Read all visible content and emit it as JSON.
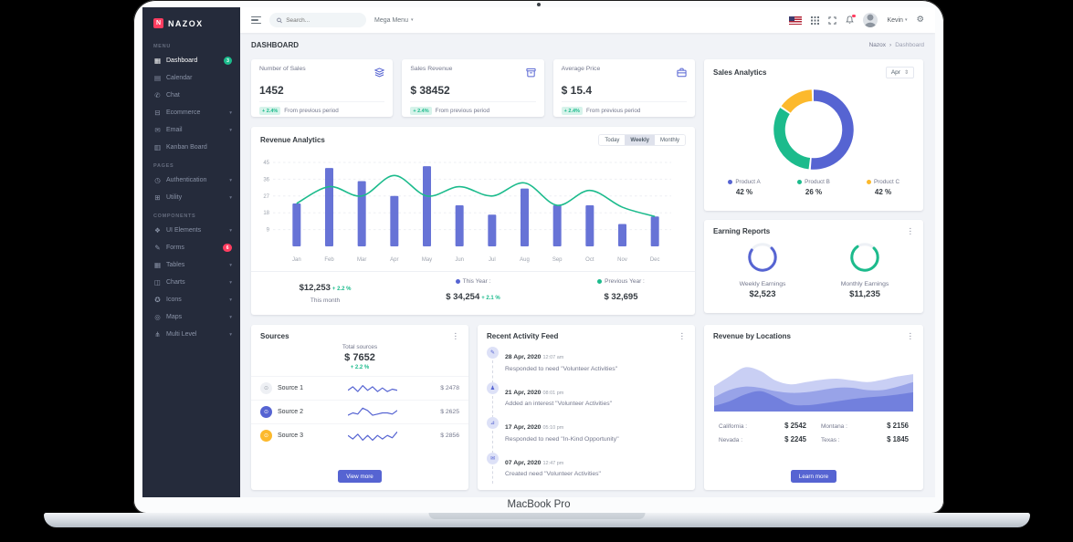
{
  "device": {
    "label": "MacBook Pro"
  },
  "colors": {
    "primary": "#5664d2",
    "success": "#1cbb8c",
    "warning": "#fcb92c",
    "danger": "#ff3d60",
    "sidebar_bg": "#252b3b",
    "content_bg": "#f1f3f7"
  },
  "icons": {
    "logo_glyph": "N",
    "chevron_down": "▾",
    "caret": "▾",
    "kebab": "⋮",
    "gear": "⚙",
    "breadcrumb_sep": "›",
    "select_arrows": "⇕",
    "sidebar": {
      "dashboard": "▦",
      "calendar": "▤",
      "chat": "✆",
      "ecommerce": "⊟",
      "email": "✉",
      "kanban": "▥",
      "authentication": "◷",
      "utility": "⊞",
      "ui_elements": "❖",
      "forms": "✎",
      "tables": "▦",
      "charts": "◫",
      "icons": "✪",
      "maps": "◎",
      "multi_level": "⋔"
    },
    "activity": [
      "✎",
      "♟",
      "⊿",
      "✉"
    ],
    "sources": [
      "⊙",
      "⊙",
      "⊙"
    ]
  },
  "sidebar": {
    "logo": "NAZOX",
    "sections": [
      {
        "heading": "MENU",
        "items": [
          {
            "label": "Dashboard",
            "badge": "3",
            "active": true
          },
          {
            "label": "Calendar"
          },
          {
            "label": "Chat"
          },
          {
            "label": "Ecommerce",
            "chevron": true
          },
          {
            "label": "Email",
            "chevron": true
          },
          {
            "label": "Kanban Board"
          }
        ]
      },
      {
        "heading": "PAGES",
        "items": [
          {
            "label": "Authentication",
            "chevron": true
          },
          {
            "label": "Utility",
            "chevron": true
          }
        ]
      },
      {
        "heading": "COMPONENTS",
        "items": [
          {
            "label": "UI Elements",
            "chevron": true
          },
          {
            "label": "Forms",
            "badge": "6"
          },
          {
            "label": "Tables",
            "chevron": true
          },
          {
            "label": "Charts",
            "chevron": true
          },
          {
            "label": "Icons",
            "chevron": true
          },
          {
            "label": "Maps",
            "chevron": true
          },
          {
            "label": "Multi Level",
            "chevron": true
          }
        ]
      }
    ]
  },
  "topbar": {
    "search_placeholder": "Search...",
    "mega_menu": "Mega Menu",
    "user": "Kevin"
  },
  "page_header": {
    "title": "DASHBOARD",
    "breadcrumb_root": "Nazox",
    "breadcrumb_current": "Dashboard"
  },
  "stat_cards": [
    {
      "title": "Number of Sales",
      "value": "1452",
      "badge": "+ 2.4%",
      "note": "From previous period"
    },
    {
      "title": "Sales Revenue",
      "value": "$ 38452",
      "badge": "+ 2.4%",
      "note": "From previous period"
    },
    {
      "title": "Average Price",
      "value": "$ 15.4",
      "badge": "+ 2.4%",
      "note": "From previous period"
    }
  ],
  "revenue_analytics": {
    "title": "Revenue Analytics",
    "tabs": [
      "Today",
      "Weekly",
      "Monthly"
    ],
    "active_tab": "Weekly",
    "footer": {
      "month_value": "$12,253",
      "month_delta": "+ 2.2 %",
      "month_label": "This month",
      "year_label": "This Year :",
      "year_value": "$ 34,254",
      "year_delta": "+ 2.1 %",
      "prev_label": "Previous Year :",
      "prev_value": "$ 32,695"
    }
  },
  "sales_analytics": {
    "title": "Sales Analytics",
    "period": "Apr",
    "legend": [
      {
        "label": "Product A",
        "pct": "42 %"
      },
      {
        "label": "Product B",
        "pct": "26 %"
      },
      {
        "label": "Product C",
        "pct": "42 %"
      }
    ]
  },
  "earning_reports": {
    "title": "Earning Reports",
    "items": [
      {
        "label": "Weekly Earnings",
        "value": "$2,523"
      },
      {
        "label": "Monthly Earnings",
        "value": "$11,235"
      }
    ]
  },
  "sources": {
    "title": "Sources",
    "total_label": "Total sources",
    "total_value": "$ 7652",
    "total_delta": "+ 2.2 %",
    "rows": [
      {
        "name": "Source 1",
        "amount": "$ 2478"
      },
      {
        "name": "Source 2",
        "amount": "$ 2625"
      },
      {
        "name": "Source 3",
        "amount": "$ 2856"
      }
    ],
    "button": "View more"
  },
  "activity_feed": {
    "title": "Recent Activity Feed",
    "items": [
      {
        "date": "28 Apr, 2020",
        "time": "12:07 am",
        "text": "Responded to need \"Volunteer Activities\""
      },
      {
        "date": "21 Apr, 2020",
        "time": "08:01 pm",
        "text": "Added an interest \"Volunteer Activities\""
      },
      {
        "date": "17 Apr, 2020",
        "time": "05:10 pm",
        "text": "Responded to need \"In-Kind Opportunity\""
      },
      {
        "date": "07 Apr, 2020",
        "time": "12:47 pm",
        "text": "Created need \"Volunteer Activities\""
      }
    ]
  },
  "revenue_locations": {
    "title": "Revenue by Locations",
    "stats": [
      {
        "label": "California :",
        "value": "$ 2542"
      },
      {
        "label": "Montana :",
        "value": "$ 2156"
      },
      {
        "label": "Nevada :",
        "value": "$ 2245"
      },
      {
        "label": "Texas :",
        "value": "$ 1845"
      }
    ],
    "button": "Learn more"
  },
  "chart_data": [
    {
      "id": "revenue_analytics",
      "type": "bar",
      "title": "Revenue Analytics",
      "categories": [
        "Jan",
        "Feb",
        "Mar",
        "Apr",
        "May",
        "Jun",
        "Jul",
        "Aug",
        "Sep",
        "Oct",
        "Nov",
        "Dec"
      ],
      "series": [
        {
          "name": "Sales",
          "type": "column",
          "color": "#5664d2",
          "values": [
            23,
            42,
            35,
            27,
            43,
            22,
            17,
            31,
            22,
            22,
            12,
            16
          ]
        },
        {
          "name": "Revenue Trend",
          "type": "line",
          "color": "#1cbb8c",
          "values": [
            23,
            32,
            27,
            38,
            27,
            32,
            27,
            34,
            22,
            30,
            21,
            16
          ]
        }
      ],
      "ylim": [
        0,
        45
      ],
      "yticks": [
        9,
        18,
        27,
        36,
        45
      ],
      "grid": true,
      "legend_position": "none"
    },
    {
      "id": "sales_donut",
      "type": "pie",
      "labels": [
        "Product A",
        "Product B",
        "Product C"
      ],
      "values": [
        42,
        26,
        42
      ],
      "arc_fractions": [
        0.52,
        0.33,
        0.15
      ],
      "colors": [
        "#5664d2",
        "#1cbb8c",
        "#fcb92c"
      ]
    },
    {
      "id": "earning_radial",
      "type": "radial",
      "labels": [
        "Weekly Earnings",
        "Monthly Earnings"
      ],
      "progress": [
        0.72,
        0.78
      ],
      "colors": [
        "#5664d2",
        "#1cbb8c"
      ]
    },
    {
      "id": "source_sparklines",
      "type": "line",
      "color": "#5664d2",
      "series": [
        [
          4,
          7,
          3,
          8,
          4,
          7,
          3,
          6,
          3,
          5,
          4
        ],
        [
          3,
          5,
          4,
          9,
          7,
          3,
          4,
          5,
          5,
          4,
          7
        ],
        [
          6,
          3,
          7,
          2,
          6,
          2,
          6,
          3,
          6,
          4,
          9
        ]
      ]
    },
    {
      "id": "locations_area",
      "type": "area",
      "colors": [
        "#c9cff4",
        "#98a3e8",
        "#7280dd"
      ],
      "ylim": [
        0,
        100
      ],
      "series": [
        [
          45,
          62,
          78,
          72,
          55,
          48,
          52,
          56,
          58,
          55,
          52,
          56,
          62,
          66
        ],
        [
          25,
          38,
          44,
          42,
          36,
          33,
          34,
          38,
          42,
          42,
          38,
          38,
          44,
          52
        ],
        [
          10,
          18,
          30,
          36,
          26,
          13,
          11,
          14,
          18,
          22,
          25,
          27,
          30,
          34
        ]
      ]
    }
  ]
}
